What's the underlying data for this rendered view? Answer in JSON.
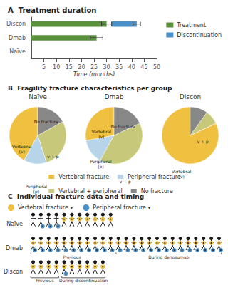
{
  "chart_data": [
    {
      "type": "bar",
      "title": "A  Treatment duration",
      "orientation": "horizontal",
      "categories": [
        "Naïve",
        "Dmab",
        "Discon"
      ],
      "series": [
        {
          "name": "Treatment",
          "color": "#5a8f3c",
          "values": [
            0,
            26,
            30
          ],
          "errors": [
            0,
            2.5,
            2
          ]
        },
        {
          "name": "Discontinuation",
          "color": "#4a90c8",
          "values": [
            null,
            null,
            10
          ],
          "starts": [
            null,
            null,
            32
          ],
          "errors": [
            null,
            null,
            1.5
          ]
        }
      ],
      "xlabel": "Time (months)",
      "xlim": [
        0,
        50
      ],
      "xticks": [
        5,
        10,
        15,
        20,
        25,
        30,
        35,
        40,
        45,
        50
      ],
      "grid": false,
      "legend": "upper right"
    },
    {
      "type": "pie",
      "title": "B  Fragility fracture characteristics per group",
      "categories": [
        "Vertebral fracture",
        "Peripheral fracture",
        "Vertebral + peripheral",
        "No fracture"
      ],
      "colors": [
        "#f0c040",
        "#b8d4e8",
        "#c8c87a",
        "#888888"
      ],
      "series": [
        {
          "name": "Naïve",
          "values": [
            42,
            13,
            28,
            17
          ],
          "labels": [
            "Vertebral\n(v)",
            "Peripheral\n(p)",
            "v + p",
            "No fracture"
          ]
        },
        {
          "name": "Dmab",
          "values": [
            28,
            14,
            40,
            18
          ],
          "labels": [
            "Vertebral\n(v)",
            "Peripheral\n(p)",
            "v + p",
            "No fracture"
          ]
        },
        {
          "name": "Discon",
          "values": [
            82,
            0,
            8,
            10
          ],
          "labels": [
            "Vertebral\n(v)",
            null,
            "v + p",
            null
          ]
        }
      ],
      "legend": "bottom"
    },
    {
      "type": "pictogram",
      "title": "C  Individual fracture data and timing",
      "color": "#1a1a1a",
      "fracture_types": [
        {
          "name": "Vertebral fracture ▾",
          "color": "#f0c040"
        },
        {
          "name": "Peripheral fracture ▾",
          "color": "#4a90c8"
        }
      ],
      "series": [
        {
          "name": "Naïve",
          "fractures": [
            [
              false,
              false
            ],
            [
              false,
              true
            ],
            [
              false,
              true
            ],
            [
              false,
              true
            ],
            [
              true,
              false
            ],
            [
              true,
              false
            ],
            [
              true,
              false
            ],
            [
              true,
              false
            ],
            [
              true,
              false
            ],
            [
              true,
              false
            ],
            [
              true,
              false
            ]
          ]
        },
        {
          "name": "Dmab",
          "fractures": [
            [
              true,
              true
            ],
            [
              true,
              true
            ],
            [
              true,
              true
            ],
            [
              true,
              true
            ],
            [
              true,
              true
            ],
            [
              true,
              true
            ],
            [
              true,
              true
            ],
            [
              true,
              true
            ],
            [
              true,
              true
            ],
            [
              true,
              true
            ],
            [
              true,
              true
            ],
            [
              true,
              true
            ],
            [
              true,
              true
            ],
            [
              true,
              true
            ],
            [
              true,
              true
            ],
            [
              true,
              true
            ],
            [
              true,
              true
            ],
            [
              true,
              true
            ],
            [
              true,
              true
            ],
            [
              true,
              true
            ],
            [
              true,
              true
            ],
            [
              true,
              true
            ],
            [
              true,
              true
            ],
            [
              true,
              true
            ],
            [
              true,
              true
            ]
          ],
          "previous_count": 11,
          "periods": [
            "Previous",
            "During denosumab"
          ]
        },
        {
          "name": "Discon",
          "fractures": [
            [
              true,
              false
            ],
            [
              true,
              false
            ],
            [
              true,
              false
            ],
            [
              true,
              false
            ],
            [
              true,
              true
            ],
            [
              true,
              false
            ],
            [
              true,
              false
            ],
            [
              true,
              false
            ],
            [
              true,
              false
            ],
            [
              true,
              false
            ]
          ],
          "previous_count": 4,
          "periods": [
            "Previous",
            "During discontinuation"
          ]
        }
      ],
      "legend": "top"
    }
  ]
}
